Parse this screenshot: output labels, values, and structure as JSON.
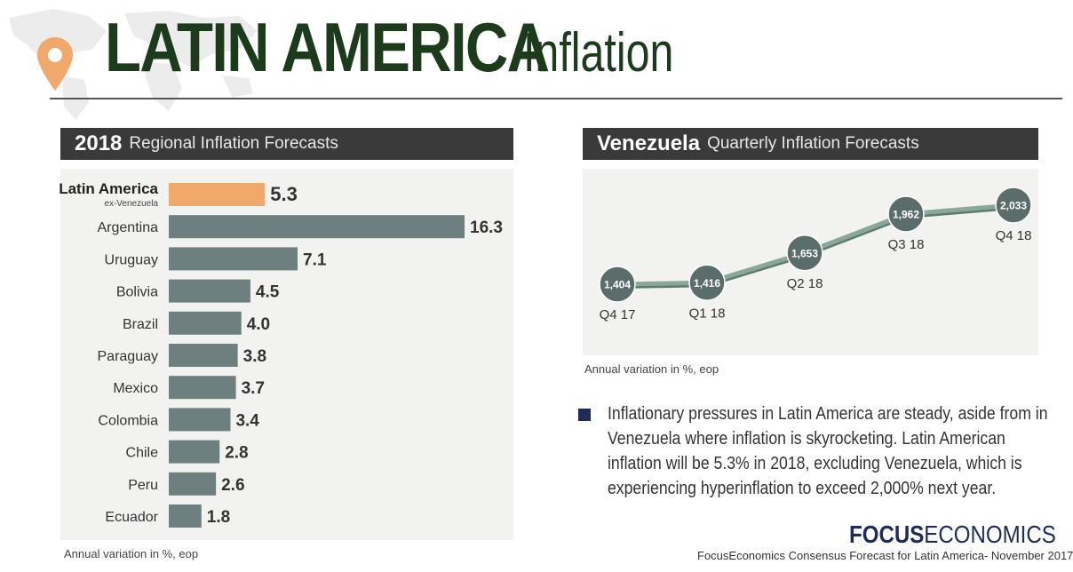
{
  "header": {
    "title_main": "LATIN AMERICA",
    "title_sub": "Inflation"
  },
  "left_panel": {
    "title_bold": "2018",
    "title_light": "Regional Inflation Forecasts",
    "note": "Annual variation in %, eop"
  },
  "right_panel": {
    "title_bold": "Venezuela",
    "title_light": "Quarterly Inflation Forecasts",
    "note": "Annual variation in %, eop"
  },
  "summary": {
    "text": "Inflationary pressures in Latin America are steady, aside from in Venezuela where inflation is skyrocketing. Latin American inflation will be 5.3% in 2018, excluding Venezuela, which is experiencing hyperinflation to exceed 2,000% next year."
  },
  "footer": {
    "logo_bold": "FOCUS",
    "logo_light": "ECONOMICS",
    "source": "FocusEconomics Consensus Forecast for Latin America- November 2017"
  },
  "colors": {
    "title": "#1c3b1a",
    "bar_highlight": "#f0a96a",
    "bar_default": "#6e7f80",
    "line": "#8aa89a",
    "marker": "#5b6d6b",
    "header_bg": "#3a3a3a",
    "bullet": "#1e2d57"
  },
  "icons": {
    "pin": "map-pin-icon",
    "map": "world-map-icon"
  },
  "chart_data": [
    {
      "type": "bar",
      "orientation": "horizontal",
      "title": "2018 Regional Inflation Forecasts",
      "categories": [
        "Latin America",
        "Argentina",
        "Uruguay",
        "Bolivia",
        "Brazil",
        "Paraguay",
        "Mexico",
        "Colombia",
        "Chile",
        "Peru",
        "Ecuador"
      ],
      "category_sublabels": [
        "ex-Venezuela",
        "",
        "",
        "",
        "",
        "",
        "",
        "",
        "",
        "",
        ""
      ],
      "highlight_index": 0,
      "values": [
        5.3,
        16.3,
        7.1,
        4.5,
        4.0,
        3.8,
        3.7,
        3.4,
        2.8,
        2.6,
        1.8
      ],
      "value_labels": [
        "5.3",
        "16.3",
        "7.1",
        "4.5",
        "4.0",
        "3.8",
        "3.7",
        "3.4",
        "2.8",
        "2.6",
        "1.8"
      ],
      "xlim": [
        0,
        16.3
      ],
      "grid": false
    },
    {
      "type": "line",
      "title": "Venezuela Quarterly Inflation Forecasts",
      "categories": [
        "Q4 17",
        "Q1 18",
        "Q2 18",
        "Q3 18",
        "Q4 18"
      ],
      "values": [
        1404,
        1416,
        1653,
        1962,
        2033
      ],
      "value_labels": [
        "1,404",
        "1,416",
        "1,653",
        "1,962",
        "2,033"
      ],
      "grid": false
    }
  ]
}
